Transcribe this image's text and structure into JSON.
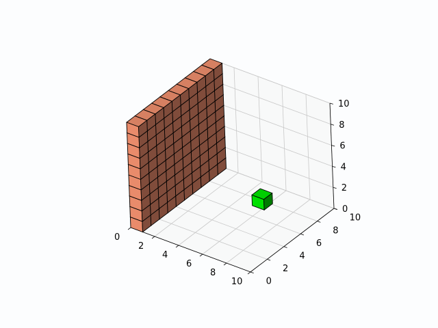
{
  "chart_data": {
    "type": "voxels",
    "title": "",
    "xlabel": "",
    "ylabel": "",
    "zlabel": "",
    "xlim": [
      0,
      10
    ],
    "ylim": [
      0,
      10
    ],
    "zlim": [
      0,
      10
    ],
    "grid": true,
    "x_ticks": [
      "0",
      "2",
      "4",
      "6",
      "8",
      "10"
    ],
    "y_ticks": [
      "0",
      "2",
      "4",
      "6",
      "8",
      "10"
    ],
    "z_ticks": [
      "0",
      "2",
      "4",
      "6",
      "8",
      "10"
    ],
    "objects": [
      {
        "name": "wall",
        "x": [
          0,
          1
        ],
        "y": [
          0,
          10
        ],
        "z": [
          0,
          10
        ],
        "color": "#e98b6b",
        "edgecolor": "#000000"
      },
      {
        "name": "cube",
        "x": [
          6,
          7
        ],
        "y": [
          6,
          7
        ],
        "z": [
          1,
          2
        ],
        "color": "#00e000",
        "edgecolor": "#000000"
      }
    ]
  },
  "colors": {
    "background": "#fcfdfe",
    "grid": "#c8c8c8",
    "pane_edge": "#d0d0d0",
    "axis": "#000000"
  }
}
